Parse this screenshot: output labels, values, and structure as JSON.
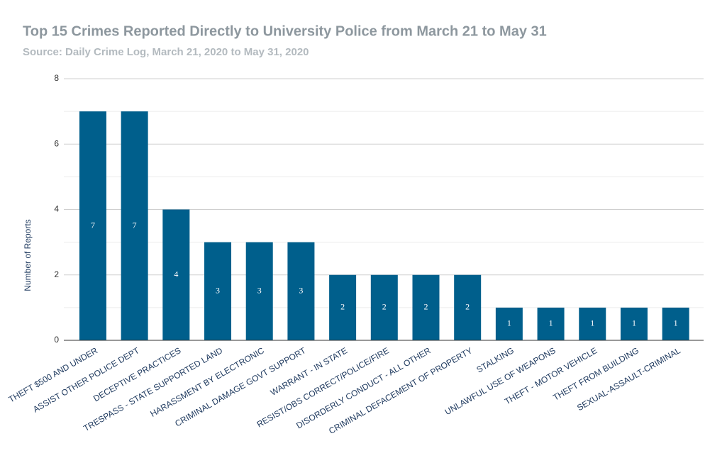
{
  "chart_data": {
    "type": "bar",
    "title": "Top 15 Crimes Reported Directly to University Police from March 21 to May 31",
    "subtitle": "Source: Daily Crime Log, March 21, 2020 to May 31, 2020",
    "y_label": "Number of Reports",
    "categories": [
      "THEFT $500 AND UNDER",
      "ASSIST OTHER POLICE DEPT",
      "DECEPTIVE PRACTICES",
      "TRESPASS - STATE SUPPORTED LAND",
      "HARASSMENT BY ELECTRONIC",
      "CRIMINAL DAMAGE GOVT SUPPORT",
      "WARRANT - IN STATE",
      "RESIST/OBS CORRECT/POLICE/FIRE",
      "DISORDERLY CONDUCT - ALL OTHER",
      "CRIMINAL DEFACEMENT OF PROPERTY",
      "STALKING",
      "UNLAWFUL USE OF WEAPONS",
      "THEFT - MOTOR VEHICLE",
      "THEFT FROM BUILDING",
      "SEXUAL-ASSAULT-CRIMINAL"
    ],
    "values": [
      7,
      7,
      4,
      3,
      3,
      3,
      2,
      2,
      2,
      2,
      1,
      1,
      1,
      1,
      1
    ],
    "color": "#005f8c",
    "ylim": [
      0,
      8
    ],
    "yticks": [
      0,
      2,
      4,
      6,
      8
    ],
    "minor_yticks": [
      1,
      3,
      5,
      7
    ],
    "grid": true
  }
}
